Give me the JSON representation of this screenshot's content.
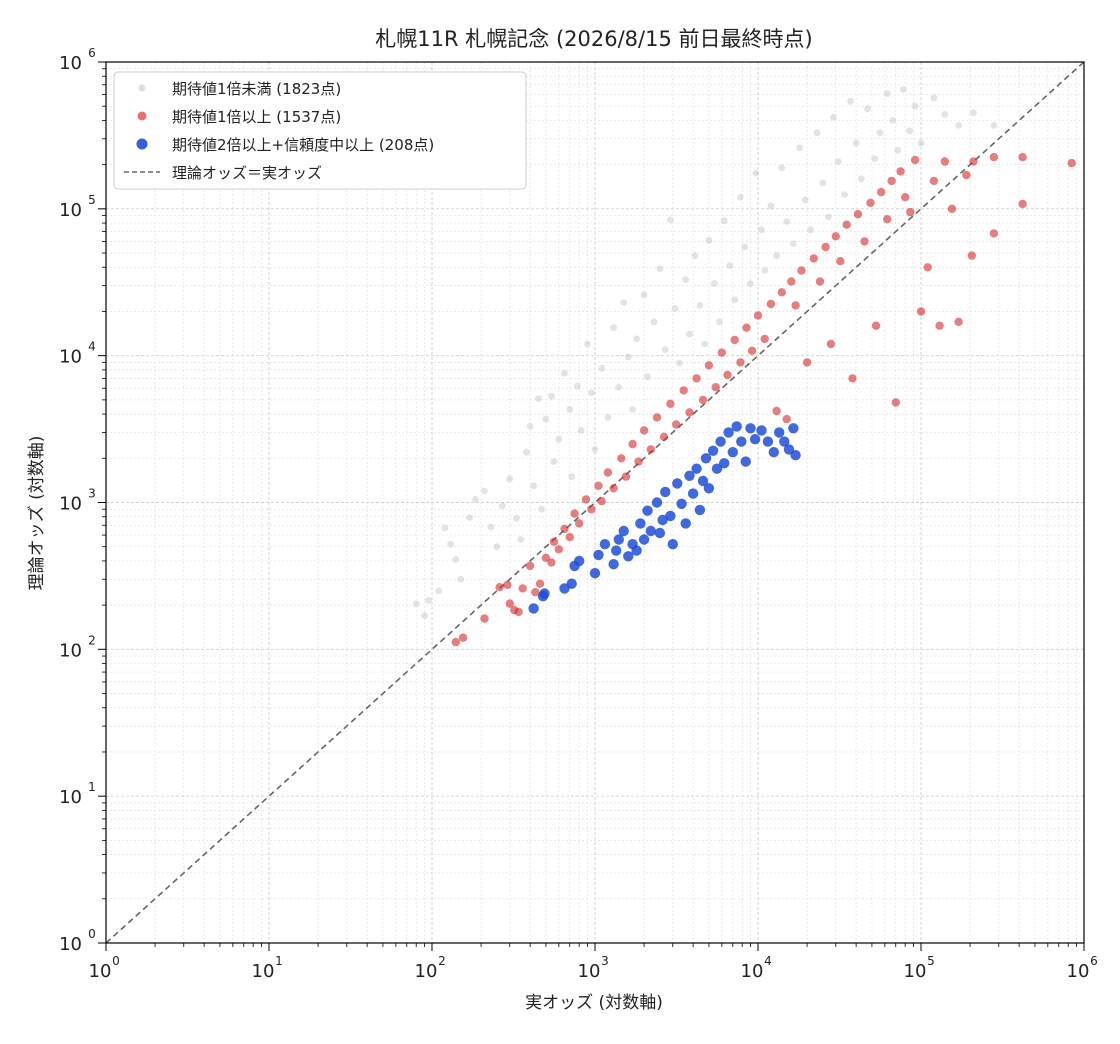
{
  "chart_data": {
    "type": "scatter",
    "title": "札幌11R 札幌記念 (2026/8/15 前日最終時点)",
    "xlabel": "実オッズ (対数軸)",
    "ylabel": "理論オッズ (対数軸)",
    "xscale": "log",
    "yscale": "log",
    "xlim": [
      1,
      1000000
    ],
    "ylim": [
      1,
      1000000
    ],
    "grid": true,
    "legend_position": "upper-left",
    "x_ticks": [
      1,
      10,
      100,
      1000,
      10000,
      100000,
      1000000
    ],
    "x_tick_labels": [
      {
        "base": "10",
        "exp": "0"
      },
      {
        "base": "10",
        "exp": "1"
      },
      {
        "base": "10",
        "exp": "2"
      },
      {
        "base": "10",
        "exp": "3"
      },
      {
        "base": "10",
        "exp": "4"
      },
      {
        "base": "10",
        "exp": "5"
      },
      {
        "base": "10",
        "exp": "6"
      }
    ],
    "y_ticks": [
      1,
      10,
      100,
      1000,
      10000,
      100000,
      1000000
    ],
    "y_tick_labels": [
      {
        "base": "10",
        "exp": "0"
      },
      {
        "base": "10",
        "exp": "1"
      },
      {
        "base": "10",
        "exp": "2"
      },
      {
        "base": "10",
        "exp": "3"
      },
      {
        "base": "10",
        "exp": "4"
      },
      {
        "base": "10",
        "exp": "5"
      },
      {
        "base": "10",
        "exp": "6"
      }
    ],
    "series": [
      {
        "name": "期待値1倍未満 (1823点)",
        "color": "#9aa1ab",
        "marker": "circle-small",
        "opacity": 0.3,
        "points": [
          [
            80,
            205
          ],
          [
            90,
            170
          ],
          [
            95,
            215
          ],
          [
            110,
            250
          ],
          [
            120,
            670
          ],
          [
            130,
            520
          ],
          [
            140,
            410
          ],
          [
            150,
            300
          ],
          [
            170,
            790
          ],
          [
            185,
            1050
          ],
          [
            210,
            1200
          ],
          [
            230,
            680
          ],
          [
            250,
            500
          ],
          [
            270,
            950
          ],
          [
            300,
            1450
          ],
          [
            330,
            780
          ],
          [
            350,
            560
          ],
          [
            380,
            2200
          ],
          [
            400,
            3300
          ],
          [
            420,
            1300
          ],
          [
            450,
            5100
          ],
          [
            470,
            900
          ],
          [
            500,
            3700
          ],
          [
            540,
            5300
          ],
          [
            560,
            1900
          ],
          [
            600,
            2700
          ],
          [
            650,
            7600
          ],
          [
            700,
            4300
          ],
          [
            720,
            1500
          ],
          [
            780,
            6200
          ],
          [
            820,
            3100
          ],
          [
            900,
            12000
          ],
          [
            950,
            5600
          ],
          [
            1000,
            2300
          ],
          [
            1100,
            8200
          ],
          [
            1200,
            3800
          ],
          [
            1300,
            15500
          ],
          [
            1400,
            6100
          ],
          [
            1500,
            23000
          ],
          [
            1600,
            9800
          ],
          [
            1700,
            4300
          ],
          [
            1800,
            13000
          ],
          [
            2000,
            26000
          ],
          [
            2100,
            7200
          ],
          [
            2300,
            17000
          ],
          [
            2500,
            39000
          ],
          [
            2700,
            11000
          ],
          [
            2900,
            84000
          ],
          [
            3100,
            21000
          ],
          [
            3300,
            8900
          ],
          [
            3600,
            33000
          ],
          [
            3800,
            14000
          ],
          [
            4100,
            48000
          ],
          [
            4400,
            22000
          ],
          [
            4700,
            12000
          ],
          [
            5000,
            61000
          ],
          [
            5400,
            31000
          ],
          [
            5800,
            17000
          ],
          [
            6200,
            83000
          ],
          [
            6700,
            41000
          ],
          [
            7200,
            24000
          ],
          [
            7800,
            120000
          ],
          [
            8300,
            55000
          ],
          [
            9000,
            31000
          ],
          [
            9700,
            175000
          ],
          [
            10500,
            72000
          ],
          [
            11000,
            38000
          ],
          [
            12000,
            105000
          ],
          [
            13000,
            48000
          ],
          [
            14000,
            190000
          ],
          [
            15000,
            82000
          ],
          [
            16500,
            58000
          ],
          [
            18000,
            260000
          ],
          [
            19500,
            115000
          ],
          [
            21000,
            72000
          ],
          [
            23000,
            330000
          ],
          [
            25000,
            150000
          ],
          [
            27000,
            88000
          ],
          [
            29000,
            420000
          ],
          [
            31000,
            210000
          ],
          [
            34000,
            125000
          ],
          [
            37000,
            540000
          ],
          [
            40000,
            280000
          ],
          [
            43000,
            160000
          ],
          [
            47000,
            480000
          ],
          [
            52000,
            220000
          ],
          [
            56000,
            330000
          ],
          [
            62000,
            610000
          ],
          [
            67000,
            400000
          ],
          [
            72000,
            250000
          ],
          [
            78000,
            650000
          ],
          [
            85000,
            340000
          ],
          [
            92000,
            500000
          ],
          [
            100000,
            280000
          ],
          [
            120000,
            570000
          ],
          [
            140000,
            440000
          ],
          [
            170000,
            370000
          ],
          [
            210000,
            450000
          ],
          [
            280000,
            370000
          ]
        ]
      },
      {
        "name": "期待値1倍以上 (1537点)",
        "color": "#d62728",
        "marker": "circle",
        "opacity": 0.6,
        "points": [
          [
            140,
            112
          ],
          [
            155,
            120
          ],
          [
            210,
            162
          ],
          [
            260,
            265
          ],
          [
            290,
            275
          ],
          [
            300,
            205
          ],
          [
            320,
            185
          ],
          [
            340,
            180
          ],
          [
            360,
            260
          ],
          [
            400,
            370
          ],
          [
            430,
            245
          ],
          [
            460,
            280
          ],
          [
            500,
            420
          ],
          [
            540,
            390
          ],
          [
            560,
            540
          ],
          [
            600,
            480
          ],
          [
            650,
            660
          ],
          [
            700,
            580
          ],
          [
            750,
            840
          ],
          [
            800,
            720
          ],
          [
            880,
            1050
          ],
          [
            950,
            900
          ],
          [
            1050,
            1300
          ],
          [
            1100,
            1020
          ],
          [
            1200,
            1600
          ],
          [
            1300,
            1250
          ],
          [
            1450,
            2000
          ],
          [
            1550,
            1500
          ],
          [
            1700,
            2500
          ],
          [
            1850,
            1900
          ],
          [
            2000,
            3100
          ],
          [
            2200,
            2300
          ],
          [
            2400,
            3800
          ],
          [
            2650,
            2800
          ],
          [
            2900,
            4700
          ],
          [
            3150,
            3400
          ],
          [
            3500,
            5800
          ],
          [
            3800,
            4100
          ],
          [
            4200,
            7000
          ],
          [
            4600,
            5000
          ],
          [
            5000,
            8600
          ],
          [
            5500,
            6100
          ],
          [
            6000,
            10500
          ],
          [
            6500,
            7400
          ],
          [
            7200,
            12800
          ],
          [
            7800,
            9000
          ],
          [
            8500,
            15500
          ],
          [
            9200,
            10800
          ],
          [
            10000,
            18800
          ],
          [
            11000,
            13000
          ],
          [
            12000,
            22500
          ],
          [
            13000,
            4200
          ],
          [
            14000,
            27000
          ],
          [
            15000,
            3700
          ],
          [
            16000,
            32000
          ],
          [
            17000,
            22000
          ],
          [
            18500,
            38000
          ],
          [
            20000,
            9000
          ],
          [
            22000,
            46000
          ],
          [
            24000,
            32000
          ],
          [
            26000,
            55000
          ],
          [
            28000,
            12000
          ],
          [
            30000,
            65000
          ],
          [
            32000,
            44000
          ],
          [
            35000,
            78000
          ],
          [
            38000,
            7000
          ],
          [
            41000,
            92000
          ],
          [
            45000,
            60000
          ],
          [
            49000,
            110000
          ],
          [
            53000,
            16000
          ],
          [
            57000,
            130000
          ],
          [
            62000,
            85000
          ],
          [
            66000,
            155000
          ],
          [
            70000,
            4800
          ],
          [
            75000,
            180000
          ],
          [
            80000,
            120000
          ],
          [
            86000,
            95000
          ],
          [
            92000,
            215000
          ],
          [
            100000,
            20000
          ],
          [
            110000,
            40000
          ],
          [
            120000,
            155000
          ],
          [
            130000,
            16000
          ],
          [
            140000,
            210000
          ],
          [
            155000,
            100000
          ],
          [
            170000,
            17000
          ],
          [
            190000,
            170000
          ],
          [
            205000,
            48000
          ],
          [
            210000,
            210000
          ],
          [
            280000,
            225000
          ],
          [
            280000,
            68000
          ],
          [
            420000,
            225000
          ],
          [
            420000,
            108000
          ],
          [
            840000,
            205000
          ]
        ]
      },
      {
        "name": "期待値2倍以上+信頼度中以上 (208点)",
        "color": "#1f4fd8",
        "marker": "circle",
        "opacity": 0.85,
        "points": [
          [
            420,
            190
          ],
          [
            480,
            230
          ],
          [
            490,
            240
          ],
          [
            650,
            260
          ],
          [
            720,
            280
          ],
          [
            750,
            370
          ],
          [
            800,
            400
          ],
          [
            1000,
            330
          ],
          [
            1050,
            440
          ],
          [
            1150,
            520
          ],
          [
            1300,
            380
          ],
          [
            1350,
            470
          ],
          [
            1400,
            560
          ],
          [
            1500,
            640
          ],
          [
            1600,
            430
          ],
          [
            1700,
            520
          ],
          [
            1800,
            470
          ],
          [
            1900,
            720
          ],
          [
            2000,
            560
          ],
          [
            2100,
            880
          ],
          [
            2200,
            640
          ],
          [
            2400,
            1000
          ],
          [
            2500,
            620
          ],
          [
            2600,
            760
          ],
          [
            2700,
            1180
          ],
          [
            2900,
            810
          ],
          [
            3000,
            520
          ],
          [
            3200,
            1350
          ],
          [
            3400,
            980
          ],
          [
            3600,
            720
          ],
          [
            3800,
            1520
          ],
          [
            4000,
            1150
          ],
          [
            4200,
            1700
          ],
          [
            4400,
            890
          ],
          [
            4600,
            1400
          ],
          [
            4800,
            2000
          ],
          [
            5000,
            1250
          ],
          [
            5300,
            2250
          ],
          [
            5600,
            1700
          ],
          [
            5900,
            2600
          ],
          [
            6200,
            1850
          ],
          [
            6600,
            3000
          ],
          [
            7000,
            2200
          ],
          [
            7400,
            3300
          ],
          [
            7900,
            2600
          ],
          [
            8400,
            1900
          ],
          [
            9000,
            3200
          ],
          [
            9600,
            2700
          ],
          [
            10500,
            3100
          ],
          [
            11500,
            2600
          ],
          [
            12500,
            2200
          ],
          [
            13500,
            3000
          ],
          [
            14500,
            2600
          ],
          [
            15500,
            2300
          ],
          [
            16500,
            3200
          ],
          [
            17000,
            2100
          ]
        ]
      }
    ],
    "reference_line": {
      "name": "理論オッズ＝実オッズ",
      "from": [
        1,
        1
      ],
      "to": [
        1000000,
        1000000
      ],
      "color": "#666666",
      "style": "dashed"
    }
  }
}
